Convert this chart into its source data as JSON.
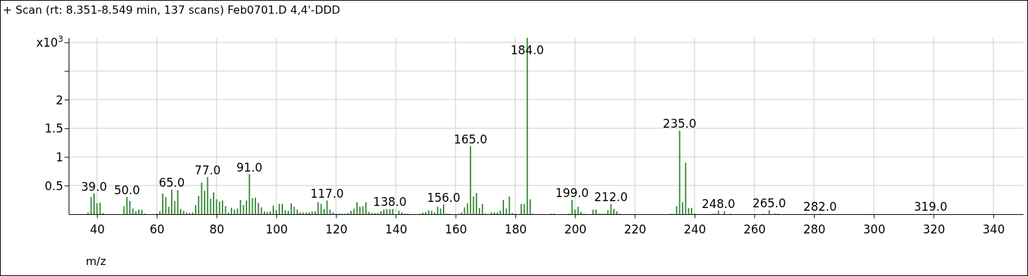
{
  "chart_data": {
    "type": "bar",
    "title": "+ Scan (rt: 8.351-8.549 min, 137 scans) Feb0701.D  4,4'-DDD",
    "xlabel": "m/z",
    "x": [
      37,
      38,
      39,
      40,
      41,
      42,
      49,
      50,
      51,
      52,
      53,
      54,
      55,
      56,
      60,
      61,
      62,
      63,
      64,
      65,
      66,
      67,
      68,
      69,
      70,
      71,
      72,
      73,
      74,
      75,
      76,
      77,
      78,
      79,
      80,
      81,
      82,
      83,
      84,
      85,
      86,
      87,
      88,
      89,
      90,
      91,
      92,
      93,
      94,
      95,
      96,
      97,
      98,
      99,
      100,
      101,
      102,
      103,
      104,
      105,
      106,
      107,
      108,
      109,
      110,
      111,
      112,
      113,
      114,
      115,
      116,
      117,
      118,
      119,
      120,
      121,
      122,
      123,
      124,
      125,
      126,
      127,
      128,
      129,
      130,
      131,
      132,
      133,
      134,
      135,
      136,
      137,
      138,
      139,
      141,
      142,
      143,
      144,
      148,
      149,
      150,
      151,
      152,
      153,
      154,
      155,
      156,
      157,
      158,
      161,
      162,
      163,
      164,
      165,
      166,
      167,
      168,
      169,
      170,
      172,
      173,
      174,
      175,
      176,
      177,
      178,
      179,
      180,
      182,
      183,
      184,
      185,
      186,
      192,
      193,
      198,
      199,
      200,
      201,
      202,
      203,
      206,
      207,
      208,
      209,
      210,
      211,
      212,
      213,
      214,
      215,
      232,
      233,
      234,
      235,
      236,
      237,
      238,
      239,
      240,
      246,
      247,
      248,
      250,
      252,
      263,
      265,
      267,
      268,
      282,
      319
    ],
    "values": [
      0.03,
      0.3,
      0.36,
      0.19,
      0.2,
      0.02,
      0.14,
      0.3,
      0.23,
      0.1,
      0.05,
      0.08,
      0.08,
      0.01,
      0.01,
      0.05,
      0.36,
      0.3,
      0.13,
      0.43,
      0.23,
      0.42,
      0.09,
      0.06,
      0.03,
      0.02,
      0.03,
      0.16,
      0.32,
      0.55,
      0.41,
      0.65,
      0.27,
      0.38,
      0.26,
      0.22,
      0.24,
      0.14,
      0.03,
      0.11,
      0.08,
      0.1,
      0.25,
      0.16,
      0.24,
      0.7,
      0.28,
      0.29,
      0.2,
      0.12,
      0.05,
      0.04,
      0.05,
      0.15,
      0.07,
      0.18,
      0.18,
      0.07,
      0.06,
      0.19,
      0.13,
      0.08,
      0.03,
      0.03,
      0.03,
      0.03,
      0.05,
      0.05,
      0.21,
      0.18,
      0.09,
      0.24,
      0.08,
      0.03,
      0.01,
      0.01,
      0.01,
      0.01,
      0.02,
      0.06,
      0.1,
      0.21,
      0.13,
      0.14,
      0.21,
      0.04,
      0.02,
      0.02,
      0.02,
      0.05,
      0.08,
      0.09,
      0.09,
      0.09,
      0.06,
      0.03,
      0.01,
      0.01,
      0.01,
      0.03,
      0.04,
      0.07,
      0.06,
      0.03,
      0.13,
      0.1,
      0.17,
      0.01,
      0.01,
      0.01,
      0.03,
      0.12,
      0.19,
      1.19,
      0.31,
      0.37,
      0.11,
      0.18,
      0.01,
      0.03,
      0.03,
      0.03,
      0.06,
      0.25,
      0.1,
      0.31,
      0.02,
      0.01,
      0.18,
      0.18,
      3.08,
      0.26,
      0.01,
      0.01,
      0.01,
      0.01,
      0.25,
      0.08,
      0.13,
      0.04,
      0.01,
      0.08,
      0.08,
      0.01,
      0.01,
      0.01,
      0.07,
      0.18,
      0.09,
      0.05,
      0.01,
      0.01,
      0.01,
      0.14,
      1.46,
      0.21,
      0.9,
      0.11,
      0.11,
      0.01,
      0.01,
      0.01,
      0.06,
      0.05,
      0.01,
      0.01,
      0.07,
      0.01,
      0.01,
      0.01,
      0.01
    ],
    "color": "#3f8f3f",
    "xlim": [
      30.5,
      350
    ],
    "xticks": [
      40,
      60,
      80,
      100,
      120,
      140,
      160,
      180,
      200,
      220,
      240,
      260,
      280,
      300,
      320,
      340
    ],
    "ylim": [
      0,
      3.08
    ],
    "yticks": [
      0.5,
      1,
      1.5,
      2,
      {
        "value": 2.5,
        "label": null
      },
      {
        "value": 3,
        "label": "x10$^{3}$"
      }
    ],
    "grid": true,
    "annotations": [
      {
        "text": "39.0",
        "x": 39,
        "y": 0.36
      },
      {
        "text": "50.0",
        "x": 50,
        "y": 0.3
      },
      {
        "text": "65.0",
        "x": 65,
        "y": 0.43
      },
      {
        "text": "77.0",
        "x": 77,
        "y": 0.65
      },
      {
        "text": "91.0",
        "x": 91,
        "y": 0.7
      },
      {
        "text": "117.0",
        "x": 117,
        "y": 0.24
      },
      {
        "text": "138.0",
        "x": 138,
        "y": 0.09
      },
      {
        "text": "156.0",
        "x": 156,
        "y": 0.17
      },
      {
        "text": "165.0",
        "x": 165,
        "y": 1.19
      },
      {
        "text": "184.0",
        "x": 184,
        "y": 3.08
      },
      {
        "text": "199.0",
        "x": 199,
        "y": 0.25
      },
      {
        "text": "212.0",
        "x": 212,
        "y": 0.18
      },
      {
        "text": "235.0",
        "x": 235,
        "y": 1.46
      },
      {
        "text": "248.0",
        "x": 248,
        "y": 0.06
      },
      {
        "text": "265.0",
        "x": 265,
        "y": 0.07
      },
      {
        "text": "282.0",
        "x": 282,
        "y": 0.01
      },
      {
        "text": "319.0",
        "x": 319,
        "y": 0.01
      }
    ]
  }
}
